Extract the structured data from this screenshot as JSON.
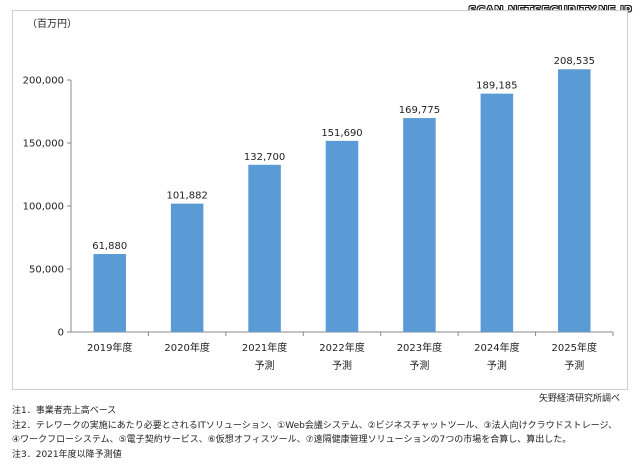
{
  "watermark": "SCAN.NETSECURITY.NE.JP",
  "chart_data": {
    "type": "bar",
    "unit_label": "（百万円）",
    "categories": [
      [
        "2019年度"
      ],
      [
        "2020年度"
      ],
      [
        "2021年度",
        "予測"
      ],
      [
        "2022年度",
        "予測"
      ],
      [
        "2023年度",
        "予測"
      ],
      [
        "2024年度",
        "予測"
      ],
      [
        "2025年度",
        "予測"
      ]
    ],
    "values": [
      61880,
      101882,
      132700,
      151690,
      169775,
      189185,
      208535
    ],
    "value_labels": [
      "61,880",
      "101,882",
      "132,700",
      "151,690",
      "169,775",
      "189,185",
      "208,535"
    ],
    "ylim": [
      0,
      250000
    ],
    "yticks": [
      0,
      50000,
      100000,
      150000,
      200000
    ],
    "ytick_labels": [
      "0",
      "50,000",
      "100,000",
      "150,000",
      "200,000"
    ],
    "bar_color": "#5b9bd5",
    "grid": false
  },
  "source": "矢野経済研究所調べ",
  "notes": [
    "注1．事業者売上高ベース",
    "注2．テレワークの実施にあたり必要とされるITソリューション、①Web会議システム、②ビジネスチャットツール、③法人向けクラウドストレージ、",
    "④ワークフローシステム、⑤電子契約サービス、⑥仮想オフィスツール、⑦遠隔健康管理ソリューションの7つの市場を合算し、算出した。",
    "注3．2021年度以降予測値"
  ]
}
